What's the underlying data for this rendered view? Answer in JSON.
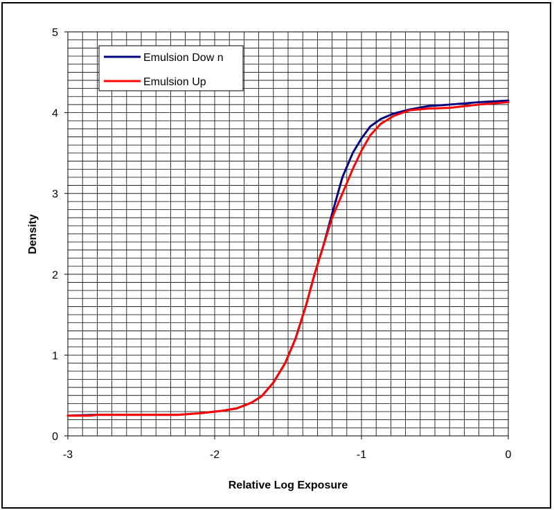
{
  "chart_data": {
    "type": "line",
    "xlabel": "Relative Log Exposure",
    "ylabel": "Density",
    "xlim": [
      -3,
      0
    ],
    "ylim": [
      0,
      5
    ],
    "x_ticks": [
      "-3",
      "-2",
      "-1",
      "0"
    ],
    "y_ticks": [
      "0",
      "1",
      "2",
      "3",
      "4",
      "5"
    ],
    "grid": true,
    "grid_x_step": 0.1,
    "grid_y_step": 0.1,
    "legend_position": "top-left",
    "series": [
      {
        "name": "Emulsion Dow n",
        "color": "#000080",
        "points": [
          [
            -3.0,
            0.25
          ],
          [
            -2.8,
            0.26
          ],
          [
            -2.5,
            0.26
          ],
          [
            -2.25,
            0.26
          ],
          [
            -2.1,
            0.28
          ],
          [
            -1.95,
            0.31
          ],
          [
            -1.85,
            0.34
          ],
          [
            -1.75,
            0.41
          ],
          [
            -1.68,
            0.49
          ],
          [
            -1.6,
            0.66
          ],
          [
            -1.52,
            0.9
          ],
          [
            -1.45,
            1.2
          ],
          [
            -1.38,
            1.6
          ],
          [
            -1.32,
            2.0
          ],
          [
            -1.26,
            2.35
          ],
          [
            -1.2,
            2.75
          ],
          [
            -1.13,
            3.2
          ],
          [
            -1.06,
            3.5
          ],
          [
            -1.0,
            3.68
          ],
          [
            -0.94,
            3.83
          ],
          [
            -0.87,
            3.92
          ],
          [
            -0.78,
            3.99
          ],
          [
            -0.67,
            4.04
          ],
          [
            -0.55,
            4.08
          ],
          [
            -0.4,
            4.1
          ],
          [
            -0.2,
            4.13
          ],
          [
            0.0,
            4.15
          ]
        ]
      },
      {
        "name": "Emulsion Up",
        "color": "#ff0000",
        "points": [
          [
            -3.0,
            0.25
          ],
          [
            -2.85,
            0.25
          ],
          [
            -2.8,
            0.26
          ],
          [
            -2.5,
            0.26
          ],
          [
            -2.25,
            0.26
          ],
          [
            -2.1,
            0.28
          ],
          [
            -1.95,
            0.31
          ],
          [
            -1.85,
            0.34
          ],
          [
            -1.75,
            0.41
          ],
          [
            -1.68,
            0.49
          ],
          [
            -1.6,
            0.66
          ],
          [
            -1.52,
            0.9
          ],
          [
            -1.45,
            1.2
          ],
          [
            -1.38,
            1.6
          ],
          [
            -1.32,
            2.0
          ],
          [
            -1.26,
            2.35
          ],
          [
            -1.2,
            2.7
          ],
          [
            -1.13,
            3.0
          ],
          [
            -1.06,
            3.3
          ],
          [
            -1.0,
            3.53
          ],
          [
            -0.94,
            3.72
          ],
          [
            -0.87,
            3.86
          ],
          [
            -0.78,
            3.96
          ],
          [
            -0.67,
            4.03
          ],
          [
            -0.55,
            4.05
          ],
          [
            -0.4,
            4.06
          ],
          [
            -0.2,
            4.1
          ],
          [
            0.0,
            4.13
          ]
        ]
      }
    ]
  }
}
